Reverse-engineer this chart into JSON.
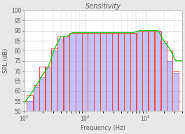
{
  "title": "Sensitivity",
  "xlabel": "Frequency (Hz)",
  "ylabel": "SPL (dB)",
  "ylim": [
    50,
    100
  ],
  "xlim": [
    10,
    4000
  ],
  "background_color": "#e8e8e8",
  "plot_bg_color": "#ffffff",
  "third_octave_freqs": [
    12.5,
    16,
    20,
    25,
    31.5,
    40,
    50,
    63,
    80,
    100,
    125,
    160,
    200,
    250,
    315,
    400,
    500,
    630,
    800,
    1000,
    1250,
    1600,
    2000,
    2500,
    3150
  ],
  "red_values": [
    58,
    63,
    72,
    72,
    81,
    87,
    87,
    89,
    89,
    89,
    89,
    89,
    89,
    89,
    89,
    89,
    89,
    89,
    90,
    90,
    90,
    90,
    85,
    80,
    70
  ],
  "blue_values": [
    55,
    62,
    67,
    72,
    80,
    86,
    87,
    89,
    89,
    89,
    89,
    89,
    89,
    89,
    89,
    89,
    89,
    89,
    90,
    90,
    90,
    90,
    84,
    75,
    69
  ],
  "green_line_freq": [
    10,
    12.5,
    16,
    20,
    25,
    31.5,
    40,
    50,
    63,
    80,
    100,
    125,
    160,
    200,
    250,
    315,
    400,
    500,
    630,
    800,
    1000,
    1250,
    1600,
    2000,
    2500,
    3150,
    4000
  ],
  "green_line_vals": [
    54,
    58,
    63,
    68,
    72,
    81,
    87,
    87,
    89,
    89,
    89,
    89,
    89,
    89,
    89,
    89,
    89,
    89,
    89,
    90,
    90,
    90,
    90,
    85,
    81,
    75,
    75
  ],
  "bar_color_red": "#ff4444",
  "bar_color_blue": "#6666ff",
  "bar_fill_blue": "#aaaaff",
  "bar_fill_alpha": 0.5,
  "line_color_green": "#00cc00",
  "grid_color": "#cccccc",
  "title_fontsize": 7,
  "axis_fontsize": 6,
  "tick_fontsize": 5.5
}
